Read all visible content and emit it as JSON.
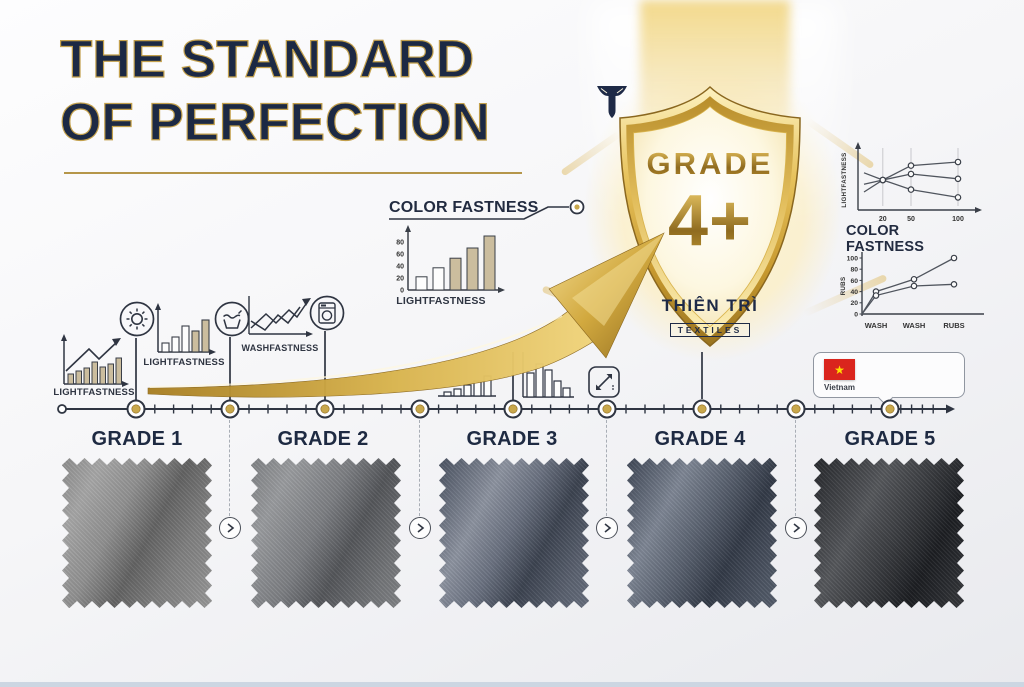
{
  "poster": {
    "title_line1": "THE STANDARD",
    "title_line2": "OF PERFECTION"
  },
  "callout": {
    "label": "COLOR FASTNESS"
  },
  "icons": {
    "lightfastness_a": "LIGHTFASTNESS",
    "lightfastness_b": "LIGHTFASTNESS",
    "washfastness": "WASHFASTNESS"
  },
  "badge": {
    "grade_label": "GRADE",
    "grade_value": "4+",
    "brand_name": "THIÊN TRÌ",
    "brand_sub": "TEXTILES"
  },
  "country": {
    "name": "Vietnam"
  },
  "timeline": {
    "grades": [
      "GRADE 1",
      "GRADE 2",
      "GRADE 3",
      "GRADE 4",
      "GRADE 5"
    ]
  },
  "chart_data": [
    {
      "id": "lightfastness-bars",
      "type": "bar",
      "xlabel": "LIGHTFASTNESS",
      "values": [
        22,
        37,
        53,
        70,
        90
      ],
      "yticks": [
        0,
        20,
        40,
        60,
        80
      ],
      "ylim": [
        0,
        100
      ],
      "grid": false,
      "bar_colors": [
        "#fdfdfd",
        "#fdfdfd",
        "#cbbd9e",
        "#cbbd9e",
        "#cbbd9e"
      ]
    },
    {
      "id": "lightfastness-lines",
      "type": "line",
      "ylabel": "LIGHTFASTNESS",
      "x": [
        0,
        20,
        50,
        100
      ],
      "xticks": [
        20,
        50,
        100
      ],
      "ylim": [
        0,
        100
      ],
      "grid": true,
      "series": [
        {
          "name": "line-1",
          "values": [
            30,
            50,
            74,
            80
          ]
        },
        {
          "name": "line-2",
          "values": [
            43,
            50,
            60,
            52
          ]
        },
        {
          "name": "line-3",
          "values": [
            62,
            50,
            34,
            21
          ]
        }
      ]
    },
    {
      "id": "colorfastness-lines",
      "type": "line",
      "title": "COLOR FASTNESS",
      "ylabel": "RUBS",
      "categories": [
        "WASH",
        "WASH",
        "RUBS"
      ],
      "yticks": [
        0,
        20,
        40,
        60,
        80,
        100
      ],
      "ylim": [
        0,
        100
      ],
      "grid": false,
      "series": [
        {
          "name": "line-1",
          "values": [
            0,
            40,
            62,
            100
          ]
        },
        {
          "name": "line-2",
          "values": [
            0,
            33,
            50,
            53
          ]
        }
      ]
    }
  ],
  "colors": {
    "navy": "#1e2a47",
    "gold": "#c9a227",
    "gold_light": "#f3dd94",
    "bar_tan": "#cbbd9e",
    "flag_red": "#da251d",
    "flag_yellow": "#ffde00",
    "swatch_grays": [
      "#8a8a8a",
      "#7d7f82",
      "#5a6270",
      "#49515f",
      "#2e3034"
    ]
  }
}
